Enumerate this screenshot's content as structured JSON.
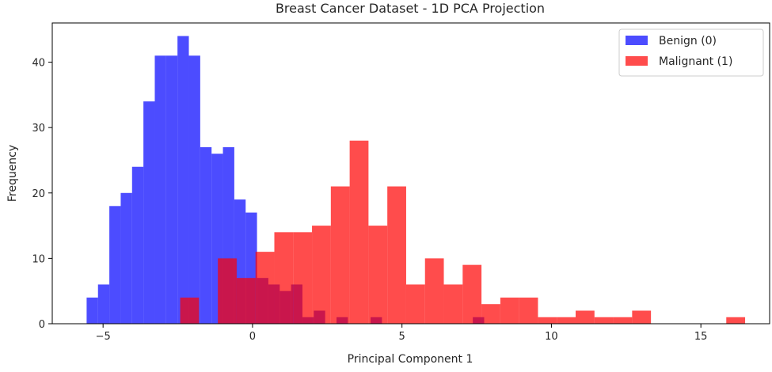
{
  "chart_data": {
    "type": "bar",
    "title": "Breast Cancer Dataset - 1D PCA Projection",
    "xlabel": "Principal Component 1",
    "ylabel": "Frequency",
    "xlim": [
      -6.7,
      17.3
    ],
    "ylim": [
      0,
      46
    ],
    "xticks": [
      -5,
      0,
      5,
      10,
      15
    ],
    "xtick_labels": [
      "−5",
      "0",
      "5",
      "10",
      "15"
    ],
    "yticks": [
      0,
      10,
      20,
      30,
      40
    ],
    "grid": false,
    "legend_position": "top-right",
    "series": [
      {
        "name": "Benign (0)",
        "color": "#0000ff",
        "alpha": 0.7,
        "bins": [
          {
            "x0": -5.55,
            "x1": -5.17,
            "count": 4
          },
          {
            "x0": -5.17,
            "x1": -4.79,
            "count": 6
          },
          {
            "x0": -4.79,
            "x1": -4.41,
            "count": 18
          },
          {
            "x0": -4.41,
            "x1": -4.03,
            "count": 20
          },
          {
            "x0": -4.03,
            "x1": -3.65,
            "count": 24
          },
          {
            "x0": -3.65,
            "x1": -3.27,
            "count": 34
          },
          {
            "x0": -3.27,
            "x1": -2.89,
            "count": 41
          },
          {
            "x0": -2.89,
            "x1": -2.51,
            "count": 41
          },
          {
            "x0": -2.51,
            "x1": -2.13,
            "count": 44
          },
          {
            "x0": -2.13,
            "x1": -1.75,
            "count": 41
          },
          {
            "x0": -1.75,
            "x1": -1.37,
            "count": 27
          },
          {
            "x0": -1.37,
            "x1": -0.99,
            "count": 26
          },
          {
            "x0": -0.99,
            "x1": -0.61,
            "count": 27
          },
          {
            "x0": -0.61,
            "x1": -0.23,
            "count": 19
          },
          {
            "x0": -0.23,
            "x1": 0.15,
            "count": 17
          },
          {
            "x0": 0.15,
            "x1": 0.53,
            "count": 7
          },
          {
            "x0": 0.53,
            "x1": 0.91,
            "count": 6
          },
          {
            "x0": 0.91,
            "x1": 1.29,
            "count": 5
          },
          {
            "x0": 1.29,
            "x1": 1.67,
            "count": 6
          },
          {
            "x0": 1.67,
            "x1": 2.05,
            "count": 1
          },
          {
            "x0": 2.05,
            "x1": 2.43,
            "count": 2
          },
          {
            "x0": 2.81,
            "x1": 3.19,
            "count": 1
          },
          {
            "x0": 3.95,
            "x1": 4.33,
            "count": 1
          },
          {
            "x0": 7.37,
            "x1": 7.75,
            "count": 1
          }
        ]
      },
      {
        "name": "Malignant (1)",
        "color": "#ff0000",
        "alpha": 0.7,
        "bins": [
          {
            "x0": -2.42,
            "x1": -1.79,
            "count": 4
          },
          {
            "x0": -1.16,
            "x1": -0.53,
            "count": 10
          },
          {
            "x0": -0.53,
            "x1": 0.1,
            "count": 7
          },
          {
            "x0": 0.1,
            "x1": 0.73,
            "count": 11
          },
          {
            "x0": 0.73,
            "x1": 1.36,
            "count": 14
          },
          {
            "x0": 1.36,
            "x1": 1.99,
            "count": 14
          },
          {
            "x0": 1.99,
            "x1": 2.62,
            "count": 15
          },
          {
            "x0": 2.62,
            "x1": 3.25,
            "count": 21
          },
          {
            "x0": 3.25,
            "x1": 3.88,
            "count": 28
          },
          {
            "x0": 3.88,
            "x1": 4.51,
            "count": 15
          },
          {
            "x0": 4.51,
            "x1": 5.14,
            "count": 21
          },
          {
            "x0": 5.14,
            "x1": 5.77,
            "count": 6
          },
          {
            "x0": 5.77,
            "x1": 6.4,
            "count": 10
          },
          {
            "x0": 6.4,
            "x1": 7.03,
            "count": 6
          },
          {
            "x0": 7.03,
            "x1": 7.66,
            "count": 9
          },
          {
            "x0": 7.66,
            "x1": 8.29,
            "count": 3
          },
          {
            "x0": 8.29,
            "x1": 8.92,
            "count": 4
          },
          {
            "x0": 8.92,
            "x1": 9.55,
            "count": 4
          },
          {
            "x0": 9.55,
            "x1": 10.18,
            "count": 1
          },
          {
            "x0": 10.18,
            "x1": 10.81,
            "count": 1
          },
          {
            "x0": 10.81,
            "x1": 11.44,
            "count": 2
          },
          {
            "x0": 11.44,
            "x1": 12.07,
            "count": 1
          },
          {
            "x0": 12.07,
            "x1": 12.7,
            "count": 1
          },
          {
            "x0": 12.7,
            "x1": 13.33,
            "count": 2
          },
          {
            "x0": 15.85,
            "x1": 16.48,
            "count": 1
          }
        ]
      }
    ]
  }
}
